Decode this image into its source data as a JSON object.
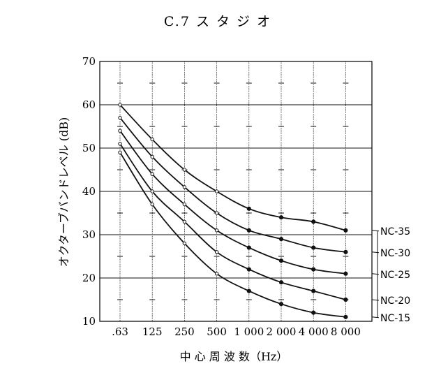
{
  "chart_data": {
    "type": "line",
    "title": "C.7 ス タ ジ オ",
    "xlabel": "中 心 周 波 数（Hz）",
    "ylabel": "オクターブバンドレベル (dB)",
    "categories": [
      ".63",
      "125",
      "250",
      "500",
      "1 000",
      "2 000",
      "4 000",
      "8 000"
    ],
    "ylim": [
      10,
      70
    ],
    "yticks": [
      10,
      20,
      30,
      40,
      50,
      60,
      70
    ],
    "grid": true,
    "series": [
      {
        "name": "NC-35",
        "values": [
          60,
          52,
          45,
          40,
          36,
          34,
          33,
          31
        ]
      },
      {
        "name": "NC-30",
        "values": [
          57,
          48,
          41,
          35,
          31,
          29,
          27,
          26
        ]
      },
      {
        "name": "NC-25",
        "values": [
          54,
          44,
          37,
          31,
          27,
          24,
          22,
          21
        ]
      },
      {
        "name": "NC-20",
        "values": [
          51,
          40,
          33,
          26,
          22,
          19,
          17,
          15
        ]
      },
      {
        "name": "NC-15",
        "values": [
          49,
          37,
          28,
          21,
          17,
          14,
          12,
          11
        ]
      }
    ]
  }
}
